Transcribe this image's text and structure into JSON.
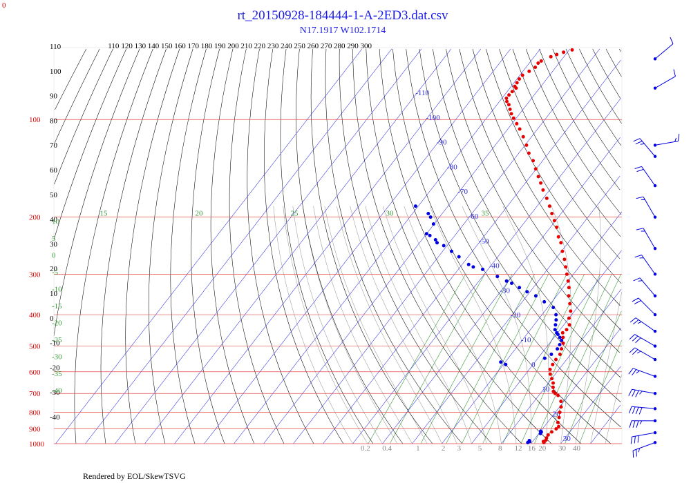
{
  "header": {
    "title": "rt_20150928-184444-1-A-2ED3.dat.csv",
    "subtitle": "N17.1917 W102.1714",
    "corner_label": "0"
  },
  "footer": {
    "credit": "Rendered by EOL/SkewTSVG"
  },
  "colors": {
    "isobar": "#e84a4a",
    "isotherm": "#2a2ae0",
    "dry_adiabat": "#000000",
    "moist_adiabat": "#999999",
    "mixing_ratio": "#3a9a3a",
    "temperature": "#e60000",
    "dewpoint": "#0000e0",
    "wind": "#0000e0"
  },
  "chart_data": {
    "type": "scatter",
    "title": "rt_20150928-184444-1-A-2ED3.dat.csv",
    "subtitle": "N17.1917 W102.1714",
    "y_scale": "log",
    "ylim": [
      1000,
      60
    ],
    "pressure_labels": [
      "100",
      "200",
      "300",
      "400",
      "500",
      "600",
      "700",
      "800",
      "900",
      "1000"
    ],
    "theta_labels": [
      "110",
      "120",
      "130",
      "140",
      "150",
      "160",
      "170",
      "180",
      "190",
      "200",
      "210",
      "220",
      "230",
      "240",
      "250",
      "260",
      "270",
      "280",
      "290",
      "300"
    ],
    "isotherm_labels": [
      "-110",
      "-100",
      "-90",
      "-80",
      "-70",
      "-60",
      "-50",
      "-40",
      "-30",
      "-20",
      "-10",
      "0",
      "10",
      "20",
      "30"
    ],
    "left_labels_black": [
      "110",
      "100",
      "90",
      "80",
      "70",
      "60",
      "50",
      "40",
      "30",
      "20",
      "10",
      "0",
      "-10",
      "-20",
      "-30",
      "-40"
    ],
    "theta_e_labels": [
      "15",
      "20",
      "25",
      "30",
      "35"
    ],
    "theta_e_left_labels": [
      "10",
      "5",
      "0",
      "-5",
      "-10",
      "-15",
      "-20",
      "-25",
      "-30",
      "-35",
      "-40"
    ],
    "mixing_ratio_labels": [
      "0.2",
      "0.4",
      "1",
      "2",
      "3",
      "5",
      "8",
      "12",
      "16",
      "20",
      "30",
      "40"
    ],
    "series": [
      {
        "name": "Temperature",
        "points": [
          [
            992,
            24
          ],
          [
            985,
            23.6
          ],
          [
            975,
            24.1
          ],
          [
            960,
            23.7
          ],
          [
            940,
            23.5
          ],
          [
            920,
            23.9
          ],
          [
            900,
            24.6
          ],
          [
            885,
            24.8
          ],
          [
            860,
            23.5
          ],
          [
            830,
            22.6
          ],
          [
            800,
            21.5
          ],
          [
            770,
            20.5
          ],
          [
            740,
            19.0
          ],
          [
            710,
            16.5
          ],
          [
            700,
            15.0
          ],
          [
            690,
            13.9
          ],
          [
            670,
            12.7
          ],
          [
            650,
            11.6
          ],
          [
            630,
            10.0
          ],
          [
            610,
            8.3
          ],
          [
            590,
            7.0
          ],
          [
            570,
            6.6
          ],
          [
            550,
            6.4
          ],
          [
            530,
            6.4
          ],
          [
            510,
            5.5
          ],
          [
            490,
            4.6
          ],
          [
            470,
            3.0
          ],
          [
            455,
            1.7
          ],
          [
            445,
            2.2
          ],
          [
            430,
            1.9
          ],
          [
            410,
            0.0
          ],
          [
            390,
            -1.3
          ],
          [
            370,
            -3.5
          ],
          [
            350,
            -5.9
          ],
          [
            330,
            -8.0
          ],
          [
            315,
            -10.0
          ],
          [
            300,
            -12.2
          ],
          [
            285,
            -14.5
          ],
          [
            270,
            -16.9
          ],
          [
            255,
            -19.7
          ],
          [
            240,
            -22.4
          ],
          [
            230,
            -24.8
          ],
          [
            215,
            -27.9
          ],
          [
            205,
            -30.4
          ],
          [
            195,
            -33.1
          ],
          [
            185,
            -35.8
          ],
          [
            175,
            -38.8
          ],
          [
            165,
            -42.2
          ],
          [
            157,
            -44.8
          ],
          [
            150,
            -47.3
          ],
          [
            142,
            -50.2
          ],
          [
            134,
            -53.2
          ],
          [
            127,
            -56.6
          ],
          [
            120,
            -59.5
          ],
          [
            113,
            -62.8
          ],
          [
            107,
            -66.0
          ],
          [
            103,
            -68.4
          ],
          [
            99,
            -70.9
          ],
          [
            96,
            -72.8
          ],
          [
            93,
            -74.4
          ],
          [
            90,
            -76.0
          ],
          [
            88,
            -77.5
          ],
          [
            86,
            -78.5
          ],
          [
            84,
            -78.5
          ],
          [
            82,
            -78.3
          ],
          [
            80,
            -77.9
          ],
          [
            79,
            -78.8
          ],
          [
            77,
            -79.0
          ],
          [
            75,
            -79.2
          ],
          [
            73,
            -79.1
          ],
          [
            71,
            -77.9
          ],
          [
            69,
            -76.9
          ],
          [
            67,
            -77.0
          ],
          [
            66,
            -76.5
          ],
          [
            64,
            -74.4
          ],
          [
            63,
            -73.0
          ],
          [
            62,
            -71.3
          ],
          [
            61,
            -69.0
          ]
        ]
      },
      {
        "name": "Dewpoint",
        "points": [
          [
            992,
            18.6
          ],
          [
            985,
            19.0
          ],
          [
            978,
            18.6
          ],
          [
            930,
            20.5
          ],
          [
            920,
            20.4
          ],
          [
            915,
            20.0
          ],
          [
            570,
            -9.2
          ],
          [
            560,
            -11.5
          ],
          [
            545,
            2.3
          ],
          [
            530,
            3.5
          ],
          [
            510,
            4.1
          ],
          [
            495,
            3.8
          ],
          [
            480,
            3.3
          ],
          [
            470,
            1.9
          ],
          [
            460,
            0.5
          ],
          [
            455,
            -0.3
          ],
          [
            445,
            -1.7
          ],
          [
            430,
            -2.8
          ],
          [
            415,
            -3.9
          ],
          [
            400,
            -5.3
          ],
          [
            380,
            -8.1
          ],
          [
            365,
            -12.6
          ],
          [
            350,
            -17.0
          ],
          [
            340,
            -21.0
          ],
          [
            330,
            -24.7
          ],
          [
            320,
            -28.4
          ],
          [
            315,
            -30.7
          ],
          [
            305,
            -35.0
          ],
          [
            290,
            -41.8
          ],
          [
            285,
            -45.6
          ],
          [
            280,
            -47.8
          ],
          [
            265,
            -53.1
          ],
          [
            255,
            -57.0
          ],
          [
            245,
            -61.1
          ],
          [
            240,
            -64.1
          ],
          [
            235,
            -65.4
          ],
          [
            228,
            -68.4
          ],
          [
            225,
            -70.0
          ],
          [
            210,
            -70.2
          ],
          [
            200,
            -73.0
          ],
          [
            195,
            -74.7
          ],
          [
            185,
            -80.9
          ]
        ]
      }
    ],
    "wind_barbs": [
      {
        "p": 992,
        "speed_kt": 25,
        "dir_deg": 250
      },
      {
        "p": 925,
        "speed_kt": 30,
        "dir_deg": 260
      },
      {
        "p": 850,
        "speed_kt": 35,
        "dir_deg": 270
      },
      {
        "p": 780,
        "speed_kt": 40,
        "dir_deg": 275
      },
      {
        "p": 700,
        "speed_kt": 35,
        "dir_deg": 280
      },
      {
        "p": 620,
        "speed_kt": 25,
        "dir_deg": 290
      },
      {
        "p": 550,
        "speed_kt": 25,
        "dir_deg": 300
      },
      {
        "p": 500,
        "speed_kt": 30,
        "dir_deg": 300
      },
      {
        "p": 450,
        "speed_kt": 25,
        "dir_deg": 305
      },
      {
        "p": 400,
        "speed_kt": 20,
        "dir_deg": 315
      },
      {
        "p": 350,
        "speed_kt": 15,
        "dir_deg": 320
      },
      {
        "p": 300,
        "speed_kt": 15,
        "dir_deg": 325
      },
      {
        "p": 250,
        "speed_kt": 15,
        "dir_deg": 330
      },
      {
        "p": 200,
        "speed_kt": 15,
        "dir_deg": 330
      },
      {
        "p": 160,
        "speed_kt": 20,
        "dir_deg": 325
      },
      {
        "p": 130,
        "speed_kt": 25,
        "dir_deg": 320
      },
      {
        "p": 120,
        "speed_kt": 15,
        "dir_deg": 80
      },
      {
        "p": 80,
        "speed_kt": 10,
        "dir_deg": 60
      },
      {
        "p": 65,
        "speed_kt": 10,
        "dir_deg": 50
      }
    ]
  }
}
